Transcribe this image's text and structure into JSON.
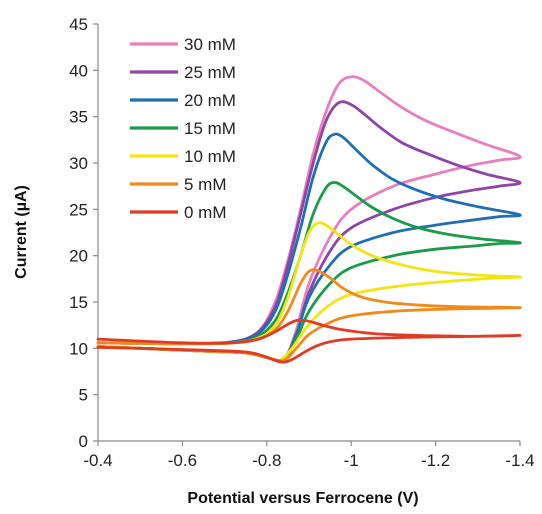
{
  "chart_data": {
    "type": "line",
    "title": "",
    "xlabel": "Potential versus Ferrocene (V)",
    "ylabel": "Current (µA)",
    "xlim": [
      -0.4,
      -1.4
    ],
    "ylim": [
      0,
      45
    ],
    "x_ticks": [
      -0.4,
      -0.6,
      -0.8,
      -1,
      -1.2,
      -1.4
    ],
    "x_tick_labels": [
      "-0.4",
      "-0.6",
      "-0.8",
      "-1",
      "-1.2",
      "-1.4"
    ],
    "y_ticks": [
      0,
      5,
      10,
      15,
      20,
      25,
      30,
      35,
      40,
      45
    ],
    "y_tick_labels": [
      "0",
      "5",
      "10",
      "15",
      "20",
      "25",
      "30",
      "35",
      "40",
      "45"
    ],
    "grid": false,
    "legend_position": "top-left",
    "series": [
      {
        "name": "30 mM",
        "color": "#e87fbf",
        "x": [
          -0.4,
          -0.6,
          -0.72,
          -0.78,
          -0.82,
          -0.85,
          -0.88,
          -0.91,
          -0.94,
          -0.97,
          -1.0,
          -1.03,
          -1.07,
          -1.12,
          -1.18,
          -1.25,
          -1.32,
          -1.4,
          -1.35,
          -1.28,
          -1.2,
          -1.1,
          -1.0,
          -0.95,
          -0.9,
          -0.87,
          -0.84,
          -0.8,
          -0.75,
          -0.65,
          -0.5,
          -0.4
        ],
        "y": [
          10.6,
          10.5,
          10.7,
          11.8,
          15,
          19.5,
          25,
          31,
          35.5,
          38.5,
          39.3,
          38.9,
          37.6,
          36,
          34.5,
          33.2,
          32,
          30.7,
          30.3,
          29.7,
          28.8,
          27.5,
          25,
          22,
          17,
          12,
          8.8,
          9,
          9.5,
          9.7,
          10,
          10.2
        ]
      },
      {
        "name": "25 mM",
        "color": "#8e44a8",
        "x": [
          -0.4,
          -0.6,
          -0.72,
          -0.78,
          -0.82,
          -0.85,
          -0.88,
          -0.91,
          -0.94,
          -0.97,
          -1.0,
          -1.03,
          -1.07,
          -1.12,
          -1.18,
          -1.25,
          -1.32,
          -1.4,
          -1.35,
          -1.28,
          -1.2,
          -1.1,
          -1.0,
          -0.95,
          -0.9,
          -0.87,
          -0.84,
          -0.8,
          -0.75,
          -0.65,
          -0.5,
          -0.4
        ],
        "y": [
          10.6,
          10.5,
          10.7,
          11.8,
          14.5,
          19,
          24.5,
          30,
          34.5,
          36.5,
          36.3,
          35.3,
          33.8,
          32.2,
          31,
          29.8,
          28.8,
          27.9,
          27.5,
          27,
          26.3,
          25,
          23,
          20.5,
          16,
          11.5,
          8.8,
          9,
          9.5,
          9.7,
          10,
          10.2
        ]
      },
      {
        "name": "20 mM",
        "color": "#1f6fb5",
        "x": [
          -0.4,
          -0.6,
          -0.72,
          -0.78,
          -0.82,
          -0.85,
          -0.88,
          -0.91,
          -0.94,
          -0.96,
          -0.98,
          -1.01,
          -1.05,
          -1.1,
          -1.16,
          -1.23,
          -1.31,
          -1.4,
          -1.35,
          -1.28,
          -1.2,
          -1.1,
          -1.0,
          -0.95,
          -0.9,
          -0.87,
          -0.84,
          -0.8,
          -0.75,
          -0.65,
          -0.5,
          -0.4
        ],
        "y": [
          10.6,
          10.5,
          10.7,
          11.6,
          14,
          18,
          23,
          28.5,
          32.2,
          33.1,
          32.8,
          31.5,
          29.8,
          28.2,
          27,
          26,
          25.2,
          24.4,
          24.2,
          23.8,
          23.3,
          22.5,
          21,
          19,
          15.5,
          11.5,
          8.8,
          9,
          9.5,
          9.7,
          10,
          10.2
        ]
      },
      {
        "name": "15 mM",
        "color": "#1a9b4b",
        "x": [
          -0.4,
          -0.6,
          -0.72,
          -0.78,
          -0.82,
          -0.85,
          -0.88,
          -0.91,
          -0.94,
          -0.96,
          -0.98,
          -1.01,
          -1.05,
          -1.1,
          -1.16,
          -1.23,
          -1.31,
          -1.4,
          -1.35,
          -1.28,
          -1.2,
          -1.1,
          -1.0,
          -0.95,
          -0.9,
          -0.87,
          -0.84,
          -0.8,
          -0.75,
          -0.65,
          -0.5,
          -0.4
        ],
        "y": [
          10.6,
          10.5,
          10.6,
          11.3,
          13,
          16,
          20,
          24.5,
          27.3,
          27.9,
          27.5,
          26.5,
          25.2,
          24,
          23,
          22.3,
          21.8,
          21.4,
          21.3,
          21,
          20.7,
          20,
          18.7,
          17,
          14,
          11,
          8.8,
          9,
          9.5,
          9.7,
          10,
          10.2
        ]
      },
      {
        "name": "10 mM",
        "color": "#f2e512",
        "x": [
          -0.4,
          -0.6,
          -0.72,
          -0.78,
          -0.82,
          -0.85,
          -0.88,
          -0.9,
          -0.92,
          -0.94,
          -0.97,
          -1.0,
          -1.05,
          -1.12,
          -1.2,
          -1.3,
          -1.4,
          -1.35,
          -1.25,
          -1.15,
          -1.05,
          -0.98,
          -0.93,
          -0.89,
          -0.86,
          -0.83,
          -0.8,
          -0.75,
          -0.65,
          -0.5,
          -0.4
        ],
        "y": [
          10.6,
          10.5,
          10.6,
          11.1,
          12.5,
          15.5,
          20,
          22.5,
          23.5,
          23.3,
          22.3,
          21.2,
          20,
          19,
          18.3,
          17.9,
          17.7,
          17.6,
          17.3,
          16.9,
          16.3,
          15.5,
          14,
          12,
          10,
          8.7,
          9,
          9.5,
          9.7,
          10,
          10.2
        ]
      },
      {
        "name": "5 mM",
        "color": "#f08a1c",
        "x": [
          -0.4,
          -0.6,
          -0.72,
          -0.78,
          -0.82,
          -0.85,
          -0.88,
          -0.9,
          -0.92,
          -0.95,
          -0.98,
          -1.02,
          -1.08,
          -1.15,
          -1.25,
          -1.4,
          -1.3,
          -1.2,
          -1.1,
          -1.0,
          -0.95,
          -0.9,
          -0.87,
          -0.84,
          -0.8,
          -0.75,
          -0.65,
          -0.5,
          -0.4
        ],
        "y": [
          10.6,
          10.5,
          10.6,
          11,
          12,
          14,
          17,
          18.3,
          18.4,
          17.6,
          16.5,
          15.6,
          15,
          14.7,
          14.5,
          14.4,
          14.3,
          14.2,
          14,
          13.5,
          12.8,
          11.5,
          10,
          8.7,
          9,
          9.5,
          9.7,
          10,
          10.2
        ]
      },
      {
        "name": "0 mM",
        "color": "#e03b24",
        "x": [
          -0.4,
          -0.6,
          -0.72,
          -0.78,
          -0.82,
          -0.85,
          -0.87,
          -0.89,
          -0.91,
          -0.94,
          -0.98,
          -1.05,
          -1.15,
          -1.3,
          -1.4,
          -1.3,
          -1.15,
          -1.0,
          -0.95,
          -0.92,
          -0.89,
          -0.86,
          -0.84,
          -0.82,
          -0.79,
          -0.75,
          -0.65,
          -0.5,
          -0.4
        ],
        "y": [
          11,
          10.6,
          10.6,
          11,
          11.8,
          12.6,
          13,
          13,
          12.8,
          12.4,
          12,
          11.6,
          11.4,
          11.3,
          11.4,
          11.3,
          11.2,
          11,
          10.7,
          10.3,
          9.6,
          8.8,
          8.5,
          8.7,
          9.2,
          9.6,
          9.8,
          10,
          10.1
        ]
      }
    ]
  }
}
